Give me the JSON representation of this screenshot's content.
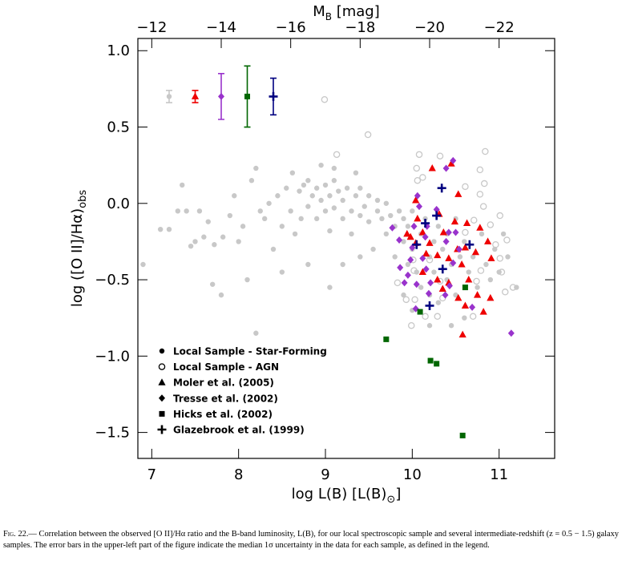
{
  "chart_data": {
    "type": "scatter",
    "xlabel": {
      "main": "log L(B) [L(B)",
      "sub": "⊙",
      "rest": "]"
    },
    "ylabel": {
      "main": "log ([O II]/Hα)",
      "sub": "obs"
    },
    "x2label": {
      "main": "M",
      "sub": "B",
      "rest": " [mag]"
    },
    "xlim": [
      6.84,
      11.64
    ],
    "ylim": [
      -1.67,
      1.08
    ],
    "x2lim": [
      -11.6,
      -23.6
    ],
    "xticks": [
      7,
      8,
      9,
      10,
      11
    ],
    "yticks": [
      {
        "value": 1,
        "label": "1.0"
      },
      {
        "value": 0.5,
        "label": "0.5"
      },
      {
        "value": 0,
        "label": "0.0"
      },
      {
        "value": -0.5,
        "label": "−0.5"
      },
      {
        "value": -1,
        "label": "−1.0"
      },
      {
        "value": -1.5,
        "label": "−1.5"
      }
    ],
    "x2ticks": [
      {
        "value": -12,
        "label": "−12"
      },
      {
        "value": -14,
        "label": "−14"
      },
      {
        "value": -16,
        "label": "−16"
      },
      {
        "value": -18,
        "label": "−18"
      },
      {
        "value": -20,
        "label": "−20"
      },
      {
        "value": -22,
        "label": "−22"
      }
    ],
    "legend": "lower left",
    "series": [
      {
        "name": "Local Sample - Star-Forming",
        "color": "#c8c8c8",
        "marker": "circle",
        "error_bar": {
          "x": 7.2,
          "y": 0.7,
          "err": 0.04
        },
        "x": [
          6.9,
          7.1,
          7.2,
          7.3,
          7.35,
          7.4,
          7.45,
          7.5,
          7.55,
          7.6,
          7.65,
          7.7,
          7.72,
          7.8,
          7.82,
          7.9,
          7.95,
          8.0,
          8.05,
          8.1,
          8.15,
          8.2,
          8.2,
          8.25,
          8.3,
          8.35,
          8.4,
          8.45,
          8.5,
          8.55,
          8.6,
          8.62,
          8.65,
          8.7,
          8.72,
          8.75,
          8.8,
          8.8,
          8.85,
          8.9,
          8.9,
          8.95,
          9.0,
          9.0,
          9.05,
          9.05,
          9.1,
          9.1,
          9.15,
          9.2,
          9.2,
          9.25,
          9.3,
          9.3,
          9.35,
          9.4,
          9.4,
          9.45,
          9.5,
          9.5,
          9.55,
          9.6,
          9.6,
          9.65,
          9.7,
          9.7,
          9.75,
          9.8,
          9.8,
          9.85,
          9.9,
          9.9,
          9.95,
          9.95,
          10.0,
          10.0,
          10.05,
          10.1,
          10.1,
          10.15,
          10.2,
          10.2,
          10.25,
          10.25,
          10.3,
          10.3,
          10.35,
          10.4,
          10.4,
          10.45,
          10.5,
          10.5,
          10.55,
          10.6,
          10.6,
          10.65,
          10.7,
          10.75,
          10.8,
          10.85,
          10.9,
          10.95,
          11.0,
          11.05,
          11.1,
          11.2,
          9.05,
          9.4,
          8.5,
          8.8,
          9.2,
          10.45,
          10.2,
          10.0,
          9.9,
          9.1,
          9.35,
          8.95
        ],
        "values": [
          -0.4,
          -0.17,
          -0.17,
          -0.05,
          0.12,
          -0.05,
          -0.28,
          -0.25,
          -0.05,
          -0.22,
          -0.12,
          -0.53,
          -0.27,
          -0.6,
          -0.22,
          -0.08,
          0.05,
          -0.25,
          -0.15,
          -0.5,
          0.15,
          -0.85,
          0.23,
          -0.05,
          -0.1,
          0.0,
          -0.3,
          0.05,
          -0.15,
          0.1,
          -0.05,
          0.2,
          -0.2,
          0.08,
          -0.1,
          0.12,
          -0.02,
          0.15,
          0.05,
          -0.1,
          0.1,
          0.02,
          -0.05,
          0.12,
          -0.18,
          0.05,
          -0.03,
          0.15,
          0.08,
          -0.1,
          0.02,
          0.1,
          -0.05,
          -0.2,
          0.05,
          -0.08,
          0.1,
          -0.02,
          -0.12,
          0.05,
          -0.3,
          -0.05,
          0.02,
          -0.1,
          -0.2,
          0.0,
          -0.08,
          -0.15,
          -0.35,
          -0.05,
          -0.25,
          -0.1,
          -0.4,
          -0.15,
          -0.05,
          -0.3,
          -0.45,
          -0.2,
          -0.55,
          -0.1,
          -0.35,
          -0.6,
          -0.25,
          -0.45,
          -0.15,
          -0.65,
          -0.3,
          -0.5,
          -0.2,
          -0.4,
          -0.1,
          -0.6,
          -0.35,
          -0.25,
          -0.75,
          -0.45,
          -0.35,
          -0.55,
          -0.2,
          -0.4,
          -0.5,
          -0.3,
          -0.45,
          -0.2,
          -0.35,
          -0.55,
          -0.55,
          -0.35,
          -0.45,
          -0.4,
          -0.4,
          -0.8,
          -0.8,
          -0.7,
          -0.6,
          0.23,
          0.2,
          0.25
        ]
      },
      {
        "name": "Local Sample - AGN",
        "color": "#c8c8c8",
        "marker": "open-circle",
        "x": [
          8.99,
          9.49,
          9.13,
          10.08,
          10.32,
          10.84,
          10.05,
          10.78,
          10.12,
          10.83,
          10.61,
          10.78,
          10.06,
          10.82,
          11.01,
          10.71,
          10.9,
          10.61,
          10.96,
          11.09,
          10.01,
          10.79,
          11.03,
          10.02,
          9.83,
          10.32,
          10.74,
          11.07,
          10.03,
          10.35,
          10.15,
          9.99,
          10.29,
          10.7,
          11.16,
          9.93,
          10.2,
          11.01
        ],
        "values": [
          0.68,
          0.45,
          0.32,
          0.32,
          0.31,
          0.34,
          0.23,
          0.22,
          0.17,
          0.13,
          0.11,
          0.06,
          0.15,
          -0.02,
          -0.08,
          -0.11,
          -0.14,
          -0.19,
          -0.27,
          -0.24,
          -0.37,
          -0.44,
          -0.45,
          -0.44,
          -0.52,
          -0.51,
          -0.51,
          -0.58,
          -0.63,
          -0.62,
          -0.74,
          -0.8,
          -0.74,
          -0.74,
          -0.55,
          -0.63,
          -0.37,
          -0.36
        ]
      },
      {
        "name": "Moler et al. (2005)",
        "color": "#ee0000",
        "marker": "triangle",
        "error_bar": {
          "x": 7.5,
          "y": 0.7,
          "err": 0.04
        },
        "x": [
          10.23,
          10.45,
          10.53,
          10.04,
          10.06,
          10.31,
          10.49,
          10.63,
          10.78,
          9.94,
          9.98,
          10.12,
          10.04,
          10.2,
          10.36,
          10.52,
          10.61,
          10.73,
          10.87,
          10.91,
          10.16,
          10.29,
          10.42,
          10.57,
          10.12,
          10.29,
          10.42,
          10.65,
          10.35,
          10.53,
          10.75,
          10.61,
          10.9,
          10.82,
          10.58
        ],
        "values": [
          0.23,
          0.26,
          0.06,
          0.02,
          -0.1,
          -0.07,
          -0.12,
          -0.13,
          -0.16,
          -0.2,
          -0.22,
          -0.19,
          -0.26,
          -0.26,
          -0.19,
          -0.3,
          -0.29,
          -0.32,
          -0.25,
          -0.36,
          -0.33,
          -0.34,
          -0.36,
          -0.4,
          -0.45,
          -0.5,
          -0.52,
          -0.5,
          -0.56,
          -0.62,
          -0.6,
          -0.67,
          -0.62,
          -0.71,
          -0.86
        ]
      },
      {
        "name": "Tresse et al. (2002)",
        "color": "#9933cc",
        "marker": "diamond",
        "error_bar": {
          "x": 7.8,
          "y": 0.7,
          "err": 0.15
        },
        "x": [
          10.47,
          10.39,
          10.06,
          10.08,
          10.28,
          9.77,
          10.02,
          10.17,
          10.42,
          10.5,
          9.85,
          10.15,
          10.39,
          10.54,
          10.0,
          10.12,
          9.98,
          9.86,
          10.16,
          10.47,
          9.95,
          10.05,
          10.21,
          10.43,
          9.91,
          10.38,
          10.69,
          10.19,
          10.04,
          11.14
        ],
        "values": [
          0.28,
          0.23,
          0.05,
          -0.02,
          -0.04,
          -0.16,
          -0.15,
          -0.15,
          -0.19,
          -0.19,
          -0.24,
          -0.22,
          -0.25,
          -0.3,
          -0.29,
          -0.36,
          -0.37,
          -0.42,
          -0.43,
          -0.39,
          -0.47,
          -0.53,
          -0.52,
          -0.54,
          -0.52,
          -0.6,
          -0.68,
          -0.59,
          -0.69,
          -0.85
        ]
      },
      {
        "name": "Hicks et al. (2002)",
        "color": "#006600",
        "marker": "square",
        "error_bar": {
          "x": 8.1,
          "y": 0.7,
          "err": 0.2
        },
        "x": [
          9.7,
          10.09,
          10.21,
          10.28,
          10.61,
          10.58
        ],
        "values": [
          -0.89,
          -0.71,
          -1.03,
          -1.05,
          -0.55,
          -1.52
        ]
      },
      {
        "name": "Glazebrook et al. (1999)",
        "color": "#000080",
        "marker": "plus",
        "error_bar": {
          "x": 8.4,
          "y": 0.7,
          "err": 0.12
        },
        "x": [
          10.34,
          10.15,
          10.28,
          10.05,
          10.66,
          10.35,
          10.2
        ],
        "values": [
          0.1,
          -0.13,
          -0.08,
          -0.27,
          -0.27,
          -0.43,
          -0.67
        ]
      }
    ]
  },
  "caption": {
    "label": "Fig. 22.—",
    "text": " Correlation between the observed [O II]/Hα ratio and the B-band luminosity, L(B), for our local spectroscopic sample and several intermediate-redshift (z = 0.5 − 1.5) galaxy samples. The error bars in the upper-left part of the figure indicate the median 1σ uncertainty in the data for each sample, as defined in the legend."
  }
}
